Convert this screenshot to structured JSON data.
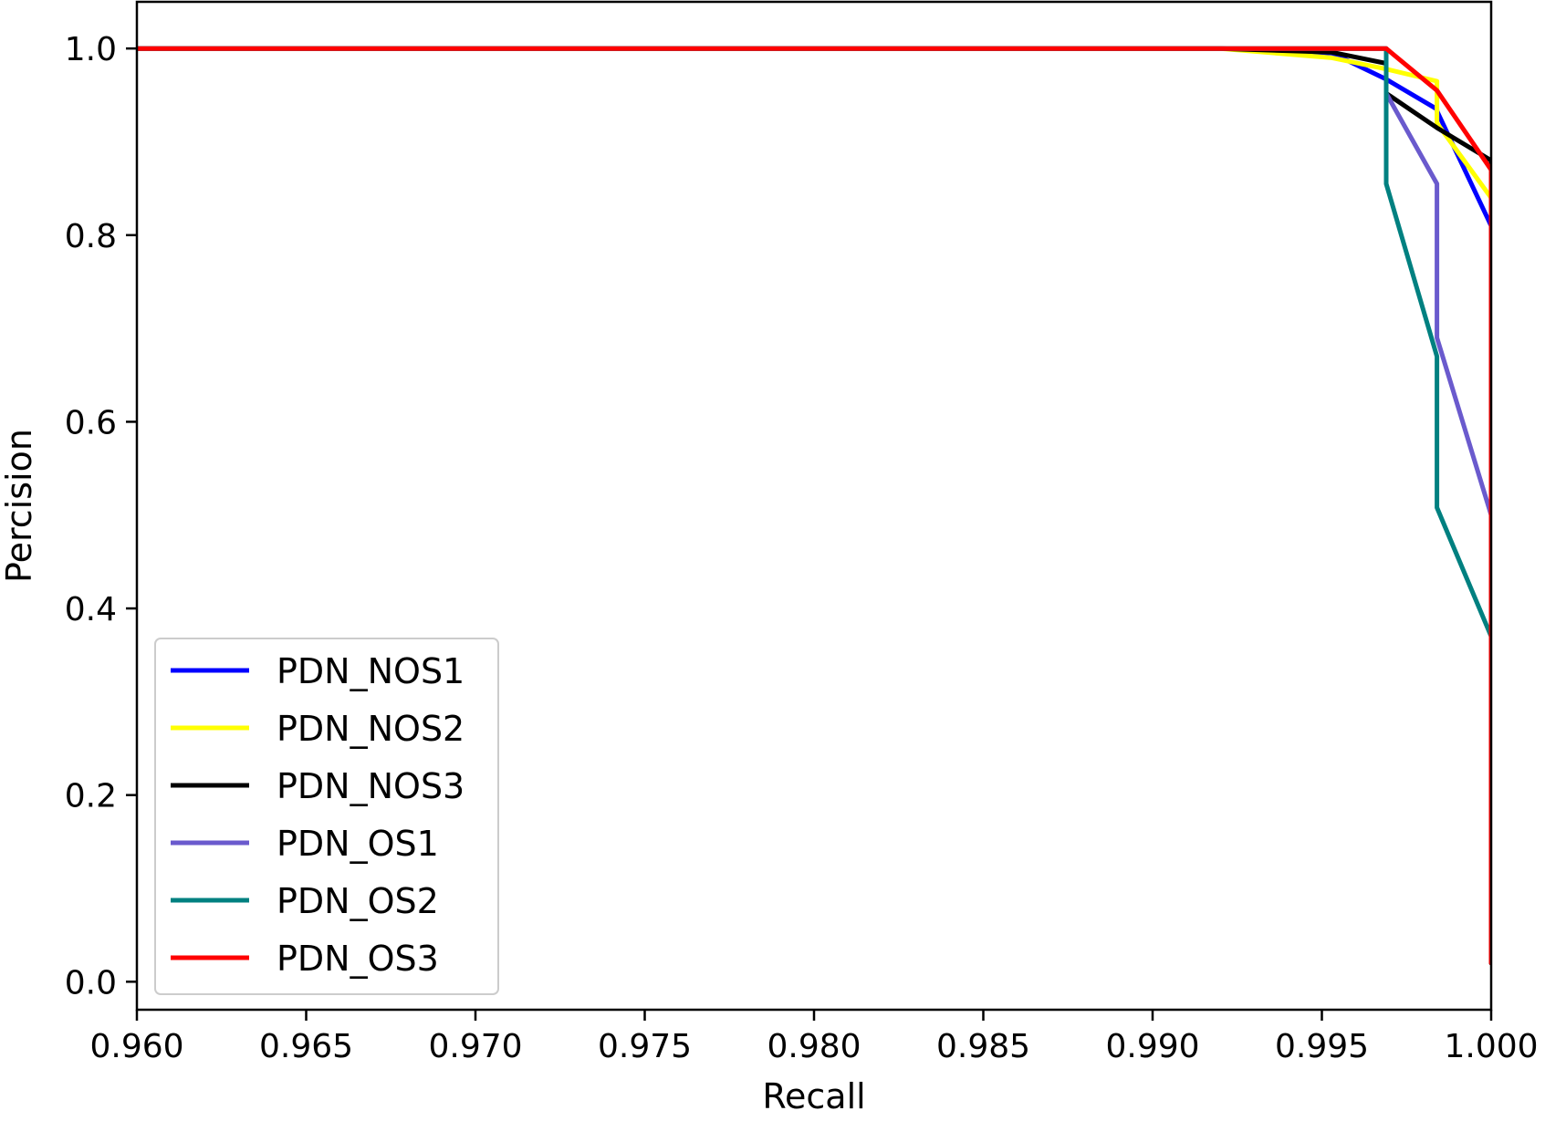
{
  "chart_data": {
    "type": "line",
    "xlabel": "Recall",
    "ylabel": "Percision",
    "xlim": [
      0.96,
      1.0
    ],
    "ylim": [
      -0.03,
      1.05
    ],
    "xticks": [
      0.96,
      0.965,
      0.97,
      0.975,
      0.98,
      0.985,
      0.99,
      0.995,
      1.0
    ],
    "xtick_labels": [
      "0.960",
      "0.965",
      "0.970",
      "0.975",
      "0.980",
      "0.985",
      "0.990",
      "0.995",
      "1.000"
    ],
    "yticks": [
      0.0,
      0.2,
      0.4,
      0.6,
      0.8,
      1.0
    ],
    "ytick_labels": [
      "0.0",
      "0.2",
      "0.4",
      "0.6",
      "0.8",
      "1.0"
    ],
    "grid": false,
    "legend_position": "lower-left",
    "series": [
      {
        "name": "PDN_NOS1",
        "color": "#0000ff",
        "x": [
          0.96,
          0.992,
          0.9953,
          0.9969,
          0.9984,
          0.9984,
          1.0,
          1.0
        ],
        "y": [
          1.0,
          1.0,
          0.995,
          0.967,
          0.935,
          0.933,
          0.81,
          0.02
        ]
      },
      {
        "name": "PDN_NOS2",
        "color": "#ffff00",
        "x": [
          0.96,
          0.992,
          0.9953,
          0.9969,
          0.9984,
          0.9984,
          1.0,
          1.0
        ],
        "y": [
          1.0,
          1.0,
          0.99,
          0.978,
          0.965,
          0.92,
          0.84,
          0.02
        ]
      },
      {
        "name": "PDN_NOS3",
        "color": "#000000",
        "x": [
          0.96,
          0.992,
          0.9953,
          0.9969,
          0.9969,
          0.9984,
          1.0,
          1.0
        ],
        "y": [
          1.0,
          1.0,
          0.996,
          0.984,
          0.952,
          0.915,
          0.88,
          0.02
        ]
      },
      {
        "name": "PDN_OS1",
        "color": "#6a5acd",
        "x": [
          0.96,
          0.9969,
          0.9969,
          0.9984,
          0.9984,
          1.0,
          1.0
        ],
        "y": [
          1.0,
          1.0,
          0.952,
          0.855,
          0.69,
          0.5,
          0.02
        ]
      },
      {
        "name": "PDN_OS2",
        "color": "#008080",
        "x": [
          0.96,
          0.9969,
          0.9969,
          0.9984,
          0.9984,
          1.0,
          1.0
        ],
        "y": [
          1.0,
          1.0,
          0.855,
          0.67,
          0.508,
          0.37,
          0.02
        ]
      },
      {
        "name": "PDN_OS3",
        "color": "#ff0000",
        "x": [
          0.96,
          0.9969,
          0.9984,
          1.0,
          1.0
        ],
        "y": [
          1.0,
          1.0,
          0.955,
          0.87,
          0.02
        ]
      }
    ]
  }
}
